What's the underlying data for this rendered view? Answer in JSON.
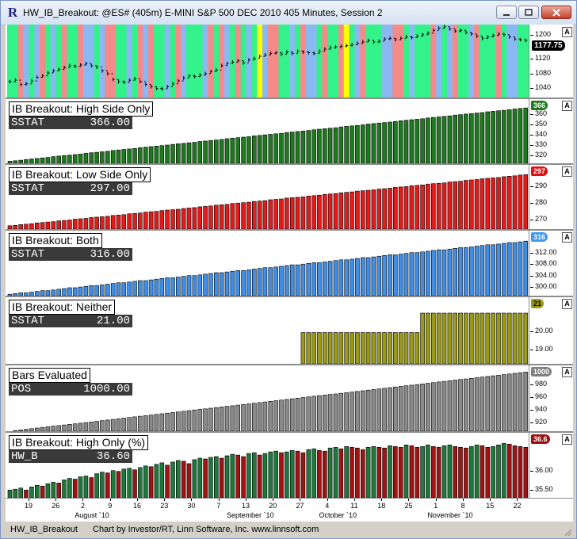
{
  "window": {
    "title": "HW_IB_Breakout: @ES# (405m) E-MINI S&P 500 DEC 2010 405 Minutes, Session 2",
    "app_icon": "investor-rt-logo",
    "controls": [
      "minimize-icon",
      "maximize-icon",
      "close-icon"
    ]
  },
  "status": {
    "chart_name": "HW_IB_Breakout",
    "credit": "Chart by Investor/RT, Linn Software, Inc. www.linnsoft.com"
  },
  "price_pane": {
    "yticks": [
      "1200",
      "1160",
      "1120",
      "1080",
      "1040"
    ],
    "last_price": "1177.75",
    "axis_button": "A",
    "bg_colors": {
      "green": "#33f28a",
      "pink": "#f48a8a",
      "blue": "#8ab8f2",
      "yellow": "#ffff00"
    },
    "bg_sequence": "GGPBGBPGBGPGGPBBGBPPGGBGPBPGGBGPBGGGBPGPBGPGBGYBPPGGBGPBBGPGGPYGBPGGGBBPPGBGGGPBGBPGGBPGGGPGBB",
    "closes": [
      1066,
      1070,
      1058,
      1060,
      1068,
      1078,
      1082,
      1090,
      1096,
      1100,
      1105,
      1110,
      1108,
      1112,
      1116,
      1110,
      1106,
      1096,
      1088,
      1072,
      1066,
      1064,
      1070,
      1074,
      1066,
      1058,
      1052,
      1047,
      1046,
      1052,
      1060,
      1068,
      1076,
      1082,
      1080,
      1084,
      1088,
      1094,
      1098,
      1110,
      1116,
      1120,
      1124,
      1118,
      1126,
      1130,
      1136,
      1140,
      1144,
      1146,
      1142,
      1148,
      1144,
      1150,
      1148,
      1146,
      1144,
      1150,
      1156,
      1160,
      1162,
      1164,
      1166,
      1168,
      1172,
      1176,
      1180,
      1176,
      1178,
      1184,
      1186,
      1182,
      1186,
      1190,
      1188,
      1192,
      1196,
      1200,
      1208,
      1214,
      1218,
      1212,
      1206,
      1208,
      1202,
      1198,
      1192,
      1186,
      1190,
      1194,
      1198,
      1196,
      1190,
      1184,
      1182,
      1180
    ]
  },
  "panes": [
    {
      "id": "high-side",
      "title": "IB Breakout: High Side Only",
      "value_name": "SSTAT",
      "value": "366.00",
      "badge": "366",
      "badge_bg": "#1f7a1f",
      "badge_fg": "#ffffff",
      "bar_color": "#1e7a1e",
      "yticks": [
        "360",
        "350",
        "340",
        "330",
        "320"
      ],
      "ymin": 312,
      "ymax": 370,
      "start": 314,
      "end": 366
    },
    {
      "id": "low-side",
      "title": "IB Breakout: Low Side Only",
      "value_name": "SSTAT",
      "value": "297.00",
      "badge": "297",
      "badge_bg": "#e01010",
      "badge_fg": "#ffffff",
      "bar_color": "#e41b1b",
      "yticks": [
        "290",
        "280",
        "270"
      ],
      "ymin": 264,
      "ymax": 300,
      "start": 266,
      "end": 297
    },
    {
      "id": "both",
      "title": "IB Breakout: Both",
      "value_name": "SSTAT",
      "value": "316.00",
      "badge": "316",
      "badge_bg": "#3f97f0",
      "badge_fg": "#ffffff",
      "bar_color": "#3f8ee8",
      "yticks": [
        "312.00",
        "308.00",
        "304.00",
        "300.00"
      ],
      "ymin": 297,
      "ymax": 318,
      "start": 297.5,
      "end": 316
    },
    {
      "id": "neither",
      "title": "IB Breakout: Neither",
      "value_name": "SSTAT",
      "value": "21.00",
      "badge": "21",
      "badge_bg": "#9a9a12",
      "badge_fg": "#000000",
      "bar_color": "#9a9a14",
      "yticks": [
        "20.00",
        "19.00"
      ],
      "ymin": 18.2,
      "ymax": 21.6,
      "steps": [
        [
          0,
          0
        ],
        [
          54,
          19.92
        ],
        [
          76,
          20.99
        ]
      ]
    },
    {
      "id": "bars-evaluated",
      "title": "Bars Evaluated",
      "value_name": "POS",
      "value": "1000.00",
      "badge": "1000",
      "badge_bg": "#808080",
      "badge_fg": "#ffffff",
      "bar_color": "#8a8a8a",
      "yticks": [
        "980",
        "960",
        "940",
        "920"
      ],
      "ymin": 906,
      "ymax": 1003,
      "start": 906,
      "end": 1000
    },
    {
      "id": "high-only-pct",
      "title": "IB Breakout: High Only (%)",
      "value_name": "HW_B",
      "value": "36.60",
      "badge": "36.6",
      "badge_bg": "#9a1010",
      "badge_fg": "#ffffff",
      "bar_up": "#1e7a3c",
      "bar_down": "#a01414",
      "yticks": [
        "36.00",
        "35.50"
      ],
      "ymin": 35.3,
      "ymax": 36.85,
      "pct": [
        35.5,
        35.52,
        35.55,
        35.5,
        35.58,
        35.62,
        35.6,
        35.66,
        35.7,
        35.68,
        35.76,
        35.8,
        35.78,
        35.84,
        35.86,
        35.82,
        35.92,
        35.96,
        35.94,
        36,
        35.98,
        36.04,
        36.06,
        36.02,
        36.08,
        36.12,
        36.1,
        36.16,
        36.2,
        36.14,
        36.22,
        36.26,
        36.24,
        36.18,
        36.28,
        36.32,
        36.3,
        36.34,
        36.36,
        36.32,
        36.38,
        36.42,
        36.4,
        36.36,
        36.44,
        36.46,
        36.4,
        36.44,
        36.48,
        36.5,
        36.46,
        36.48,
        36.52,
        36.5,
        36.46,
        36.54,
        36.56,
        36.52,
        36.5,
        36.58,
        36.6,
        36.56,
        36.62,
        36.6,
        36.58,
        36.54,
        36.6,
        36.62,
        36.6,
        36.58,
        36.64,
        36.62,
        36.6,
        36.66,
        36.64,
        36.6,
        36.62,
        36.66,
        36.62,
        36.6,
        36.64,
        36.66,
        36.62,
        36.6,
        36.58,
        36.62,
        36.66,
        36.64,
        36.6,
        36.62,
        36.66,
        36.7,
        36.68,
        36.64,
        36.62,
        36.6
      ]
    }
  ],
  "xaxis": {
    "days": [
      "19",
      "26",
      "2",
      "9",
      "16",
      "23",
      "30",
      "7",
      "13",
      "20",
      "27",
      "4",
      "11",
      "18",
      "25",
      "1",
      "8",
      "15",
      "22"
    ],
    "months": [
      "August `10",
      "September `10",
      "October `10",
      "November `10"
    ]
  }
}
